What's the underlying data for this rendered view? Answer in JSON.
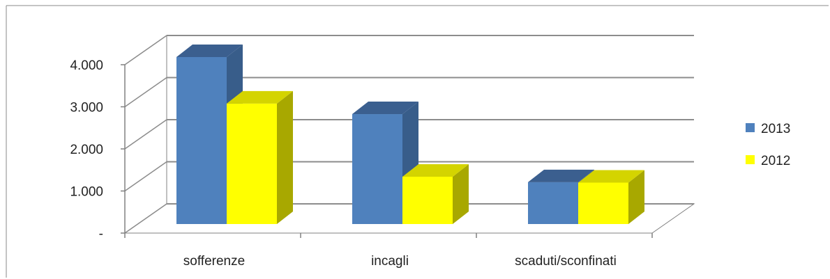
{
  "chart_data": {
    "type": "bar",
    "categories": [
      "sofferenze",
      "incagli",
      "scaduti/sconfinati"
    ],
    "series": [
      {
        "name": "2013",
        "values": [
          3950,
          2600,
          990
        ],
        "color": "#4F81BD",
        "top_color": "#3B5F8F",
        "side_color": "#385D8A"
      },
      {
        "name": "2012",
        "values": [
          2850,
          1120,
          980
        ],
        "color": "#FFFF00",
        "top_color": "#D4D400",
        "side_color": "#A8A800"
      }
    ],
    "ylim": [
      0,
      4000
    ],
    "y_ticks": [
      0,
      1000,
      2000,
      3000,
      4000
    ],
    "y_tick_labels": [
      "-",
      "1.000",
      "2.000",
      "3.000",
      "4.000"
    ],
    "grid": true,
    "three_d": true,
    "legend_position": "right"
  }
}
